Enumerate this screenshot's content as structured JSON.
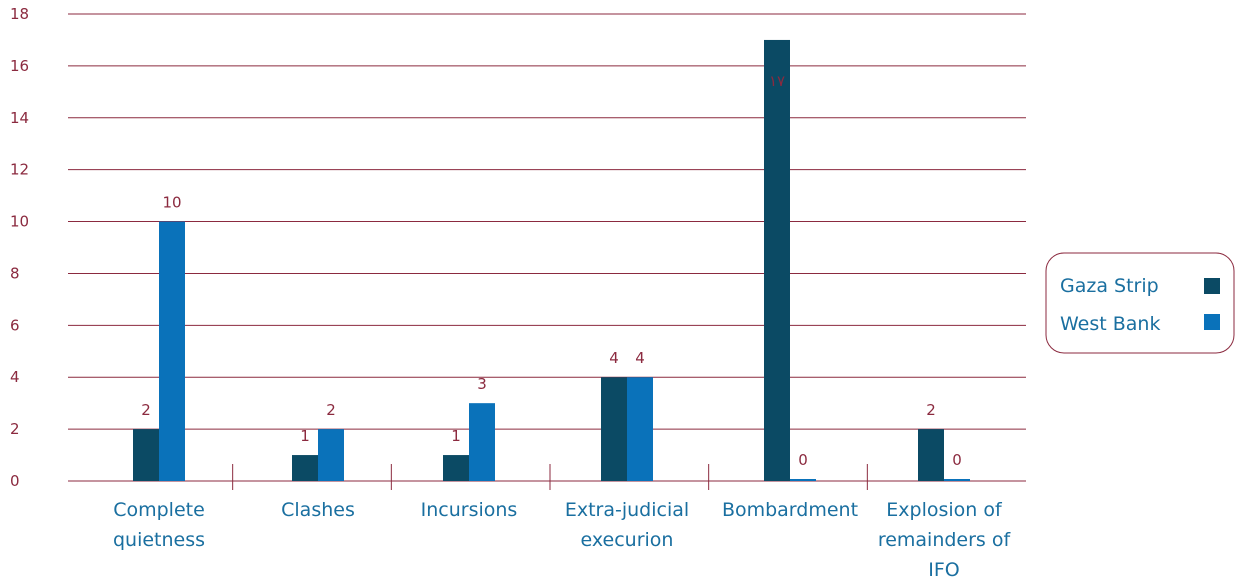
{
  "chart_data": {
    "type": "bar",
    "title": "",
    "xlabel": "",
    "ylabel": "",
    "ylim": [
      0,
      18
    ],
    "yticks": [
      0,
      2,
      4,
      6,
      8,
      10,
      12,
      14,
      16,
      18
    ],
    "grid": true,
    "legend_position": "right",
    "categories": [
      [
        "Complete",
        "quietness"
      ],
      [
        "Clashes"
      ],
      [
        "Incursions"
      ],
      [
        "Extra-judicial",
        "execurion"
      ],
      [
        "Bombardment"
      ],
      [
        "Explosion of",
        "remainders of",
        "IFO"
      ]
    ],
    "series": [
      {
        "name": "Gaza Strip",
        "color": "#0b4a64",
        "values": [
          2,
          1,
          1,
          4,
          17,
          2
        ],
        "labels": [
          "2",
          "1",
          "1",
          "4",
          "١٧",
          "2"
        ]
      },
      {
        "name": "West Bank",
        "color": "#0a72ba",
        "values": [
          10,
          2,
          3,
          4,
          0,
          0
        ],
        "labels": [
          "10",
          "2",
          "3",
          "4",
          "0",
          "0"
        ]
      }
    ],
    "colors": {
      "grid": "#8b2a3f",
      "text_accent": "#8b2a3f",
      "category_text": "#1a6fa0",
      "legend_border": "#8b2a3f"
    }
  }
}
